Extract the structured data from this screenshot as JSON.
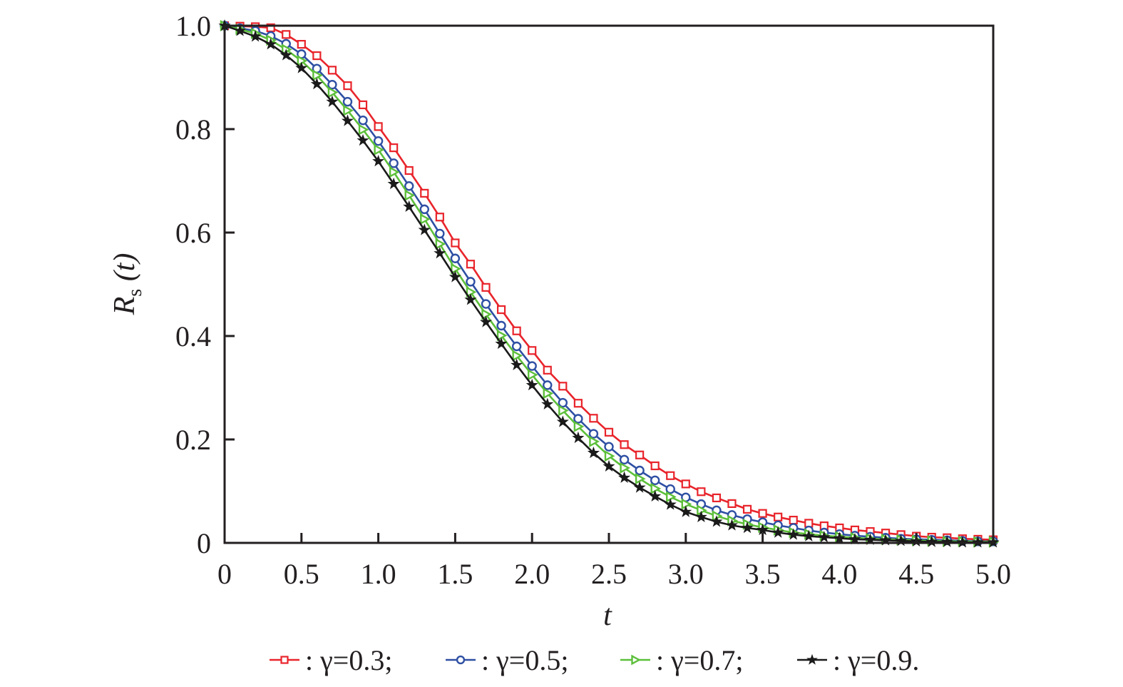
{
  "chart_data": {
    "type": "line",
    "title": "",
    "xlabel": "t",
    "ylabel": {
      "main": "R",
      "sub": "s",
      "arg": " (t)"
    },
    "xlim": [
      0,
      5
    ],
    "ylim": [
      0,
      1
    ],
    "grid": false,
    "legend_placement": "bottom",
    "x_ticks": [
      "0",
      "0.5",
      "1.0",
      "1.5",
      "2.0",
      "2.5",
      "3.0",
      "3.5",
      "4.0",
      "4.5",
      "5.0"
    ],
    "y_ticks": [
      "0",
      "0.2",
      "0.4",
      "0.6",
      "0.8",
      "1.0"
    ],
    "x_step": 0.1,
    "series": [
      {
        "name": "γ=0.3",
        "legend_text": ": γ=0.3;",
        "color": "#e8242b",
        "marker": "square",
        "values": [
          1.0,
          0.999,
          0.998,
          0.996,
          0.983,
          0.964,
          0.942,
          0.914,
          0.884,
          0.847,
          0.805,
          0.764,
          0.72,
          0.676,
          0.63,
          0.58,
          0.539,
          0.494,
          0.451,
          0.41,
          0.372,
          0.334,
          0.303,
          0.27,
          0.241,
          0.214,
          0.19,
          0.17,
          0.149,
          0.13,
          0.114,
          0.099,
          0.087,
          0.076,
          0.065,
          0.057,
          0.05,
          0.044,
          0.038,
          0.033,
          0.029,
          0.025,
          0.022,
          0.019,
          0.016,
          0.013,
          0.011,
          0.01,
          0.008,
          0.007,
          0.006
        ]
      },
      {
        "name": "γ=0.5",
        "legend_text": ": γ=0.5;",
        "color": "#2e4fa3",
        "marker": "circle",
        "values": [
          1.0,
          0.995,
          0.99,
          0.98,
          0.965,
          0.945,
          0.917,
          0.886,
          0.853,
          0.817,
          0.777,
          0.734,
          0.69,
          0.645,
          0.598,
          0.55,
          0.505,
          0.462,
          0.42,
          0.38,
          0.342,
          0.305,
          0.271,
          0.24,
          0.211,
          0.186,
          0.161,
          0.14,
          0.121,
          0.104,
          0.088,
          0.075,
          0.063,
          0.054,
          0.046,
          0.04,
          0.034,
          0.029,
          0.024,
          0.02,
          0.017,
          0.014,
          0.012,
          0.01,
          0.008,
          0.007,
          0.006,
          0.005,
          0.004,
          0.003,
          0.003
        ]
      },
      {
        "name": "γ=0.7",
        "legend_text": ": γ=0.7;",
        "color": "#5cbf3a",
        "marker": "triangle-right",
        "values": [
          1.0,
          0.993,
          0.985,
          0.972,
          0.954,
          0.932,
          0.904,
          0.871,
          0.836,
          0.799,
          0.76,
          0.717,
          0.672,
          0.626,
          0.578,
          0.53,
          0.485,
          0.442,
          0.401,
          0.362,
          0.325,
          0.289,
          0.256,
          0.225,
          0.196,
          0.168,
          0.145,
          0.124,
          0.105,
          0.089,
          0.075,
          0.063,
          0.052,
          0.043,
          0.036,
          0.03,
          0.025,
          0.02,
          0.017,
          0.014,
          0.012,
          0.01,
          0.008,
          0.007,
          0.006,
          0.005,
          0.004,
          0.003,
          0.003,
          0.002,
          0.002
        ]
      },
      {
        "name": "γ=0.9",
        "legend_text": ": γ=0.9.",
        "color": "#1a1a1a",
        "marker": "star",
        "values": [
          1.0,
          0.99,
          0.979,
          0.964,
          0.943,
          0.918,
          0.887,
          0.853,
          0.816,
          0.778,
          0.738,
          0.694,
          0.65,
          0.605,
          0.56,
          0.514,
          0.47,
          0.427,
          0.385,
          0.344,
          0.305,
          0.268,
          0.234,
          0.203,
          0.174,
          0.148,
          0.126,
          0.107,
          0.09,
          0.074,
          0.06,
          0.05,
          0.041,
          0.034,
          0.029,
          0.025,
          0.02,
          0.016,
          0.013,
          0.011,
          0.009,
          0.007,
          0.006,
          0.005,
          0.004,
          0.003,
          0.002,
          0.002,
          0.001,
          0.001,
          0.001
        ]
      }
    ]
  }
}
